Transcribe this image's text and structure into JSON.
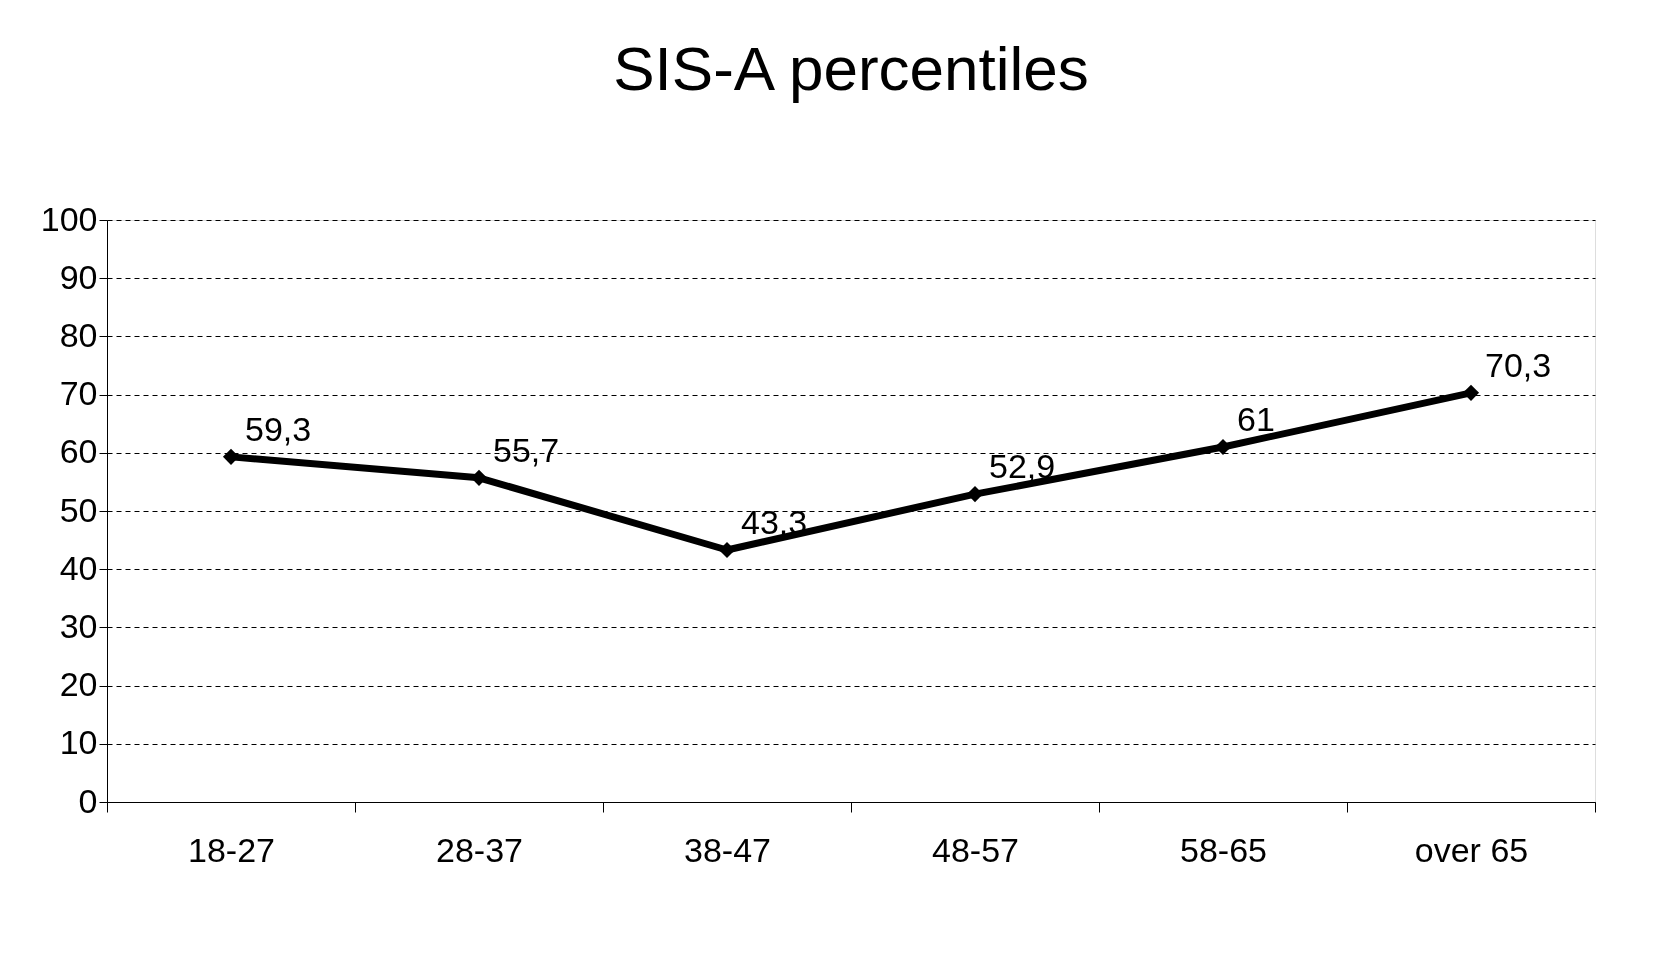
{
  "chart_data": {
    "type": "line",
    "title": "SIS-A percentiles",
    "categories": [
      "18-27",
      "28-37",
      "38-47",
      "48-57",
      "58-65",
      "over 65"
    ],
    "series": [
      {
        "color": "#000000",
        "values": [
          59.3,
          55.7,
          43.3,
          52.9,
          61,
          70.3
        ],
        "value_labels": [
          "59,3",
          "55,7",
          "43,3",
          "52,9",
          "61",
          "70,3"
        ]
      }
    ],
    "ylim": [
      0,
      100
    ],
    "yticks": [
      0,
      10,
      20,
      30,
      40,
      50,
      60,
      70,
      80,
      90,
      100
    ],
    "grid": "y",
    "marker": "diamond",
    "line_style": "solid"
  }
}
